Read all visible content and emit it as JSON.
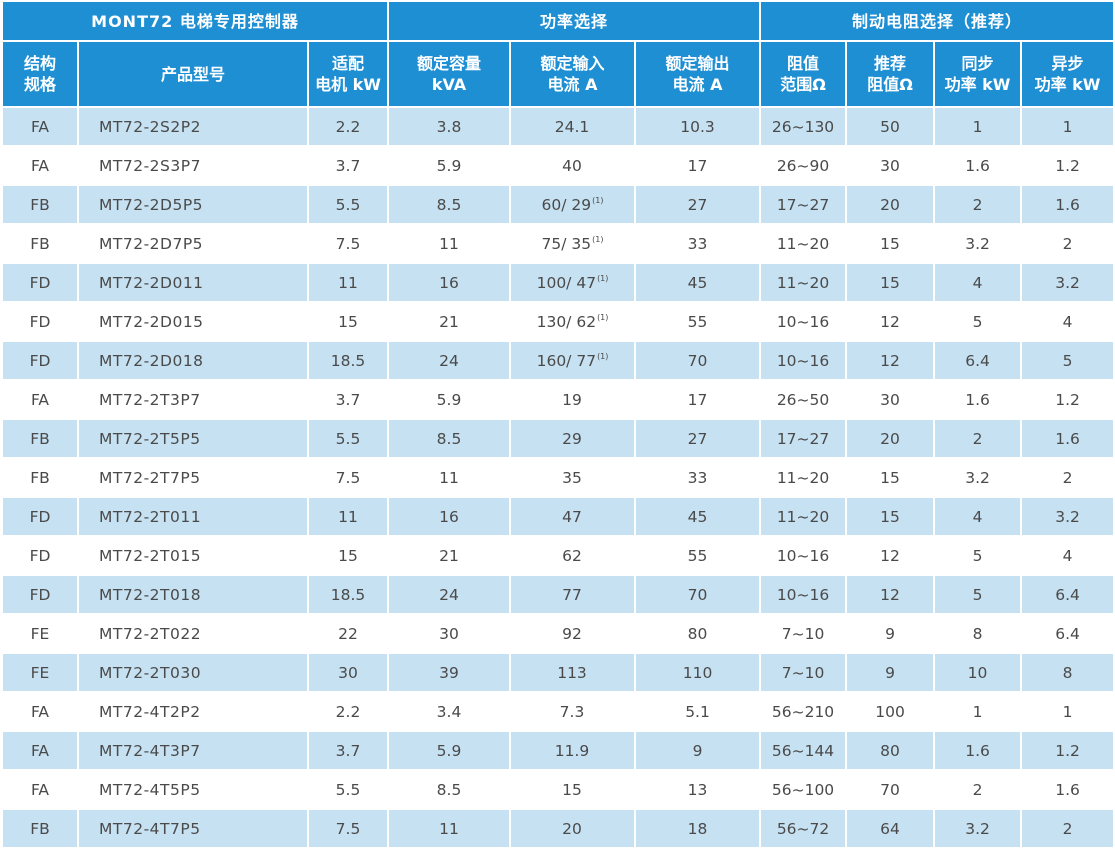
{
  "header": {
    "group_controller": "MONT72 电梯专用控制器",
    "group_power": "功率选择",
    "group_brake": "制动电阻选择（推荐）",
    "columns": [
      [
        "结构",
        "规格"
      ],
      [
        "产品型号"
      ],
      [
        "适配",
        "电机 kW"
      ],
      [
        "额定容量",
        "kVA"
      ],
      [
        "额定输入",
        "电流 A"
      ],
      [
        "额定输出",
        "电流 A"
      ],
      [
        "阻值",
        "范围Ω"
      ],
      [
        "推荐",
        "阻值Ω"
      ],
      [
        "同步",
        "功率 kW"
      ],
      [
        "异步",
        "功率 kW"
      ]
    ]
  },
  "rows": [
    [
      "FA",
      "MT72-2S2P2",
      "2.2",
      "3.8",
      "24.1",
      "",
      "10.3",
      "26~130",
      "50",
      "1",
      "1"
    ],
    [
      "FA",
      "MT72-2S3P7",
      "3.7",
      "5.9",
      "40",
      "",
      "17",
      "26~90",
      "30",
      "1.6",
      "1.2"
    ],
    [
      "FB",
      "MT72-2D5P5",
      "5.5",
      "8.5",
      "60/ 29",
      "(1)",
      "27",
      "17~27",
      "20",
      "2",
      "1.6"
    ],
    [
      "FB",
      "MT72-2D7P5",
      "7.5",
      "11",
      "75/ 35",
      "(1)",
      "33",
      "11~20",
      "15",
      "3.2",
      "2"
    ],
    [
      "FD",
      "MT72-2D011",
      "11",
      "16",
      "100/ 47",
      "(1)",
      "45",
      "11~20",
      "15",
      "4",
      "3.2"
    ],
    [
      "FD",
      "MT72-2D015",
      "15",
      "21",
      "130/ 62",
      "(1)",
      "55",
      "10~16",
      "12",
      "5",
      "4"
    ],
    [
      "FD",
      "MT72-2D018",
      "18.5",
      "24",
      "160/ 77",
      "(1)",
      "70",
      "10~16",
      "12",
      "6.4",
      "5"
    ],
    [
      "FA",
      "MT72-2T3P7",
      "3.7",
      "5.9",
      "19",
      "",
      "17",
      "26~50",
      "30",
      "1.6",
      "1.2"
    ],
    [
      "FB",
      "MT72-2T5P5",
      "5.5",
      "8.5",
      "29",
      "",
      "27",
      "17~27",
      "20",
      "2",
      "1.6"
    ],
    [
      "FB",
      "MT72-2T7P5",
      "7.5",
      "11",
      "35",
      "",
      "33",
      "11~20",
      "15",
      "3.2",
      "2"
    ],
    [
      "FD",
      "MT72-2T011",
      "11",
      "16",
      "47",
      "",
      "45",
      "11~20",
      "15",
      "4",
      "3.2"
    ],
    [
      "FD",
      "MT72-2T015",
      "15",
      "21",
      "62",
      "",
      "55",
      "10~16",
      "12",
      "5",
      "4"
    ],
    [
      "FD",
      "MT72-2T018",
      "18.5",
      "24",
      "77",
      "",
      "70",
      "10~16",
      "12",
      "5",
      "6.4"
    ],
    [
      "FE",
      "MT72-2T022",
      "22",
      "30",
      "92",
      "",
      "80",
      "7~10",
      "9",
      "8",
      "6.4"
    ],
    [
      "FE",
      "MT72-2T030",
      "30",
      "39",
      "113",
      "",
      "110",
      "7~10",
      "9",
      "10",
      "8"
    ],
    [
      "FA",
      "MT72-4T2P2",
      "2.2",
      "3.4",
      "7.3",
      "",
      "5.1",
      "56~210",
      "100",
      "1",
      "1"
    ],
    [
      "FA",
      "MT72-4T3P7",
      "3.7",
      "5.9",
      "11.9",
      "",
      "9",
      "56~144",
      "80",
      "1.6",
      "1.2"
    ],
    [
      "FA",
      "MT72-4T5P5",
      "5.5",
      "8.5",
      "15",
      "",
      "13",
      "56~100",
      "70",
      "2",
      "1.6"
    ],
    [
      "FB",
      "MT72-4T7P5",
      "7.5",
      "11",
      "20",
      "",
      "18",
      "56~72",
      "64",
      "3.2",
      "2"
    ]
  ],
  "colors": {
    "header_bg": "#1e8fd3",
    "row_alt_bg": "#c6e1f2",
    "text": "#4a4a4a"
  }
}
